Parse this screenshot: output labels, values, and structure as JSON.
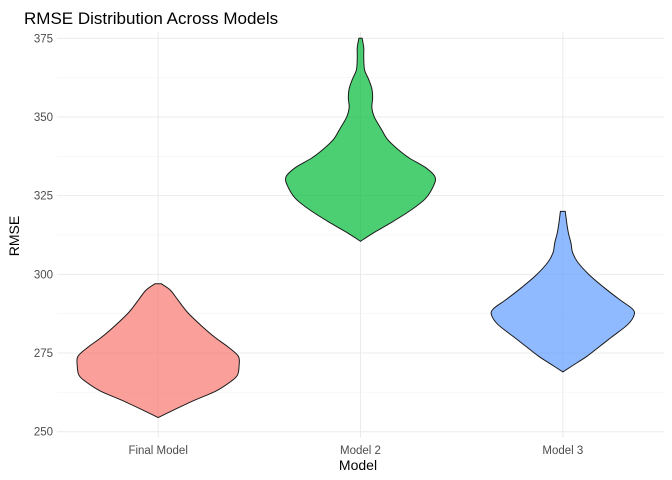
{
  "chart_data": {
    "type": "violin",
    "title": "RMSE Distribution Across Models",
    "xlabel": "Model",
    "ylabel": "RMSE",
    "ylim": [
      248,
      377
    ],
    "yticks": [
      250,
      275,
      300,
      325,
      350,
      375
    ],
    "grid": true,
    "legend": "none",
    "categories": [
      "Final Model",
      "Model 2",
      "Model 3"
    ],
    "series": [
      {
        "category": "Final Model",
        "color": "#F8766D",
        "density": [
          [
            254.5,
            0.0
          ],
          [
            257,
            0.2
          ],
          [
            260,
            0.45
          ],
          [
            263,
            0.72
          ],
          [
            266,
            0.9
          ],
          [
            268,
            0.98
          ],
          [
            271,
            1.0
          ],
          [
            274,
            0.99
          ],
          [
            277,
            0.86
          ],
          [
            280,
            0.7
          ],
          [
            284,
            0.52
          ],
          [
            288,
            0.36
          ],
          [
            292,
            0.24
          ],
          [
            295,
            0.15
          ],
          [
            297,
            0.04
          ]
        ]
      },
      {
        "category": "Model 2",
        "color": "#00BA38",
        "density": [
          [
            310.5,
            0.0
          ],
          [
            313,
            0.15
          ],
          [
            316,
            0.35
          ],
          [
            320,
            0.6
          ],
          [
            324,
            0.8
          ],
          [
            328,
            0.9
          ],
          [
            331,
            0.92
          ],
          [
            334,
            0.8
          ],
          [
            337,
            0.6
          ],
          [
            340,
            0.45
          ],
          [
            343,
            0.33
          ],
          [
            346,
            0.26
          ],
          [
            350,
            0.17
          ],
          [
            353,
            0.14
          ],
          [
            356,
            0.15
          ],
          [
            359,
            0.14
          ],
          [
            362,
            0.1
          ],
          [
            365,
            0.05
          ],
          [
            369,
            0.04
          ],
          [
            372,
            0.04
          ],
          [
            375,
            0.02
          ]
        ]
      },
      {
        "category": "Model 3",
        "color": "#619CFF",
        "density": [
          [
            269,
            0.0
          ],
          [
            271,
            0.12
          ],
          [
            274,
            0.3
          ],
          [
            277,
            0.45
          ],
          [
            280,
            0.6
          ],
          [
            284,
            0.8
          ],
          [
            287,
            0.88
          ],
          [
            289,
            0.86
          ],
          [
            292,
            0.7
          ],
          [
            296,
            0.5
          ],
          [
            300,
            0.32
          ],
          [
            304,
            0.18
          ],
          [
            307,
            0.12
          ],
          [
            310,
            0.1
          ],
          [
            313,
            0.07
          ],
          [
            316,
            0.05
          ],
          [
            320,
            0.03
          ]
        ]
      }
    ]
  }
}
